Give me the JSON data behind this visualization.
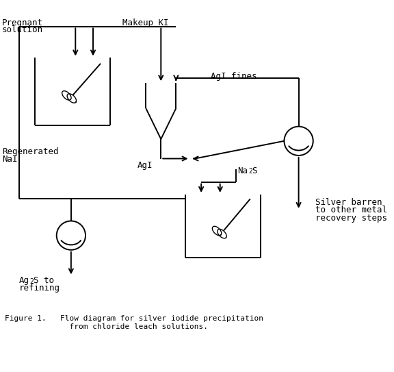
{
  "background_color": "#ffffff",
  "line_color": "#000000",
  "lw": 1.4,
  "labels": {
    "pregnant_solution": [
      "Pregnant",
      "solution"
    ],
    "makeup_ki": "Makeup KI",
    "regenerated_nai": [
      "Regenerated",
      "NaI"
    ],
    "agi": "AgI",
    "agi_fines": "AgI fines",
    "na2s_main": "Na",
    "na2s_sub": "2",
    "na2s_end": "S",
    "silver_barren": [
      "Silver barren",
      "to other metal",
      "recovery steps"
    ],
    "ag2s_main": "Ag",
    "ag2s_sub": "2",
    "ag2s_end": "S to",
    "ag2s_line2": "refining",
    "figure_caption": "Figure 1.   Flow diagram for silver iodide precipitation",
    "figure_caption2": "              from chloride leach solutions."
  },
  "font_size": 9,
  "font_size_small": 7,
  "font_size_caption": 8
}
